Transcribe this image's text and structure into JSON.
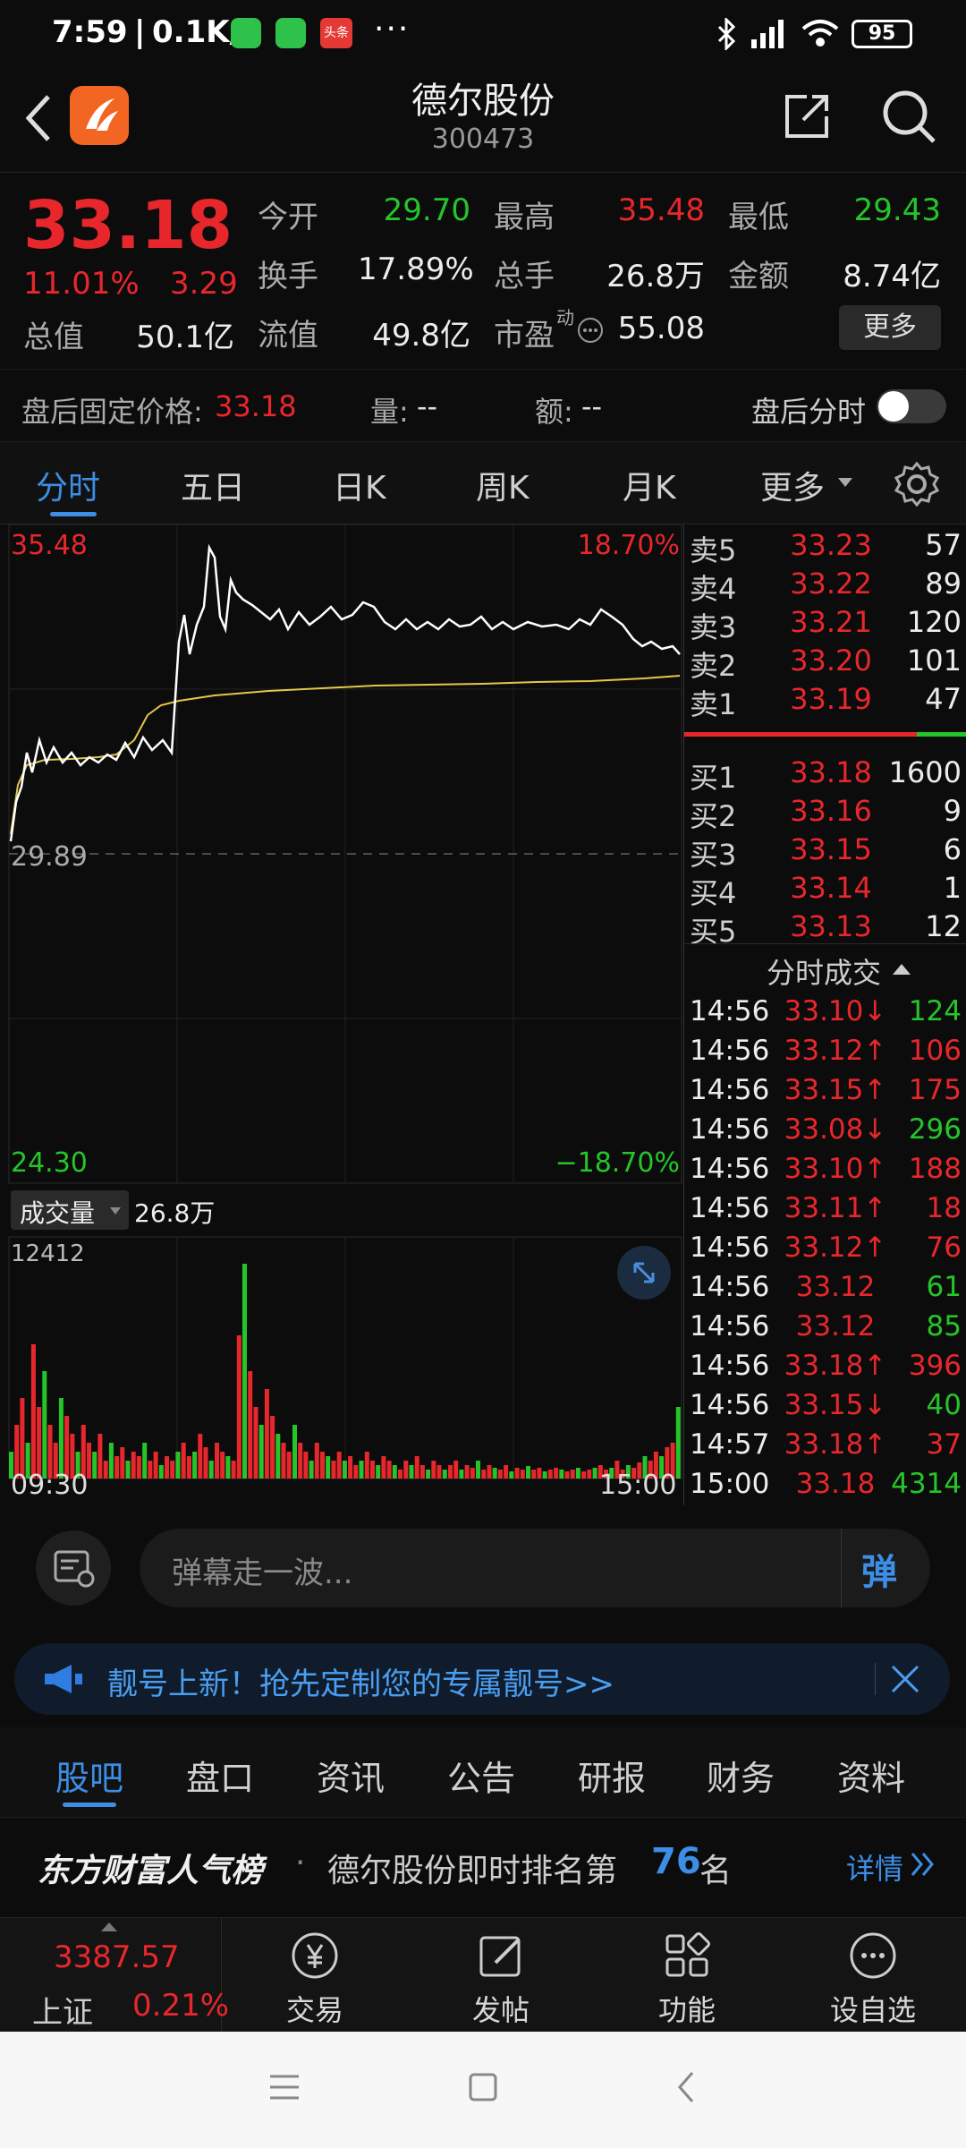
{
  "status": {
    "time": "7:59",
    "speed": "0.1K/s",
    "battery": "95",
    "more": "···",
    "app_badge": "头条"
  },
  "header": {
    "name": "德尔股份",
    "code": "300473"
  },
  "quote": {
    "price": "33.18",
    "pct": "11.01%",
    "chg": "3.29",
    "open_label": "今开",
    "open": "29.70",
    "high_label": "最高",
    "high": "35.48",
    "low_label": "最低",
    "low": "29.43",
    "turnover_label": "换手",
    "turnover": "17.89%",
    "volume_label": "总手",
    "volume": "26.8万",
    "amount_label": "金额",
    "amount": "8.74亿",
    "mcap_label": "总值",
    "mcap": "50.1亿",
    "float_label": "流值",
    "float": "49.8亿",
    "pe_label": "市盈",
    "pe_sup": "动",
    "pe": "55.08",
    "more": "更多"
  },
  "after_hours": {
    "label": "盘后固定价格:",
    "price": "33.18",
    "vol_label": "量:",
    "vol": "--",
    "amt_label": "额:",
    "amt": "--",
    "toggle_label": "盘后分时"
  },
  "period_tabs": [
    "分时",
    "五日",
    "日K",
    "周K",
    "月K",
    "更多"
  ],
  "chart": {
    "max_price": "35.48",
    "max_pct": "18.70%",
    "prev_close": "29.89",
    "min_price": "24.30",
    "min_pct": "−18.70%",
    "vol_selector": "成交量",
    "vol_total": "26.8万",
    "vol_max": "12412",
    "t_start": "09:30",
    "t_end": "15:00"
  },
  "colors": {
    "up": "#e8272c",
    "down": "#25c52a",
    "price_line": "#ffffff",
    "avg_line": "#e2c84a",
    "accent": "#3c8ee6"
  },
  "orderbook": {
    "asks": [
      {
        "label": "卖5",
        "price": "33.23",
        "vol": "57"
      },
      {
        "label": "卖4",
        "price": "33.22",
        "vol": "89"
      },
      {
        "label": "卖3",
        "price": "33.21",
        "vol": "120"
      },
      {
        "label": "卖2",
        "price": "33.20",
        "vol": "101"
      },
      {
        "label": "卖1",
        "price": "33.19",
        "vol": "47"
      }
    ],
    "bids": [
      {
        "label": "买1",
        "price": "33.18",
        "vol": "1600"
      },
      {
        "label": "买2",
        "price": "33.16",
        "vol": "9"
      },
      {
        "label": "买3",
        "price": "33.15",
        "vol": "6"
      },
      {
        "label": "买4",
        "price": "33.14",
        "vol": "1"
      },
      {
        "label": "买5",
        "price": "33.13",
        "vol": "12"
      }
    ],
    "trades_title": "分时成交",
    "trades": [
      {
        "time": "14:56",
        "price": "33.10",
        "arrow": "↓",
        "vol": "124",
        "dir": "down"
      },
      {
        "time": "14:56",
        "price": "33.12",
        "arrow": "↑",
        "vol": "106",
        "dir": "up"
      },
      {
        "time": "14:56",
        "price": "33.15",
        "arrow": "↑",
        "vol": "175",
        "dir": "up"
      },
      {
        "time": "14:56",
        "price": "33.08",
        "arrow": "↓",
        "vol": "296",
        "dir": "down"
      },
      {
        "time": "14:56",
        "price": "33.10",
        "arrow": "↑",
        "vol": "188",
        "dir": "up"
      },
      {
        "time": "14:56",
        "price": "33.11",
        "arrow": "↑",
        "vol": "18",
        "dir": "up"
      },
      {
        "time": "14:56",
        "price": "33.12",
        "arrow": "↑",
        "vol": "76",
        "dir": "up"
      },
      {
        "time": "14:56",
        "price": "33.12",
        "arrow": "",
        "vol": "61",
        "dir": "down"
      },
      {
        "time": "14:56",
        "price": "33.12",
        "arrow": "",
        "vol": "85",
        "dir": "down"
      },
      {
        "time": "14:56",
        "price": "33.18",
        "arrow": "↑",
        "vol": "396",
        "dir": "up"
      },
      {
        "time": "14:56",
        "price": "33.15",
        "arrow": "↓",
        "vol": "40",
        "dir": "down"
      },
      {
        "time": "14:57",
        "price": "33.18",
        "arrow": "↑",
        "vol": "37",
        "dir": "up"
      },
      {
        "time": "15:00",
        "price": "33.18",
        "arrow": "",
        "vol": "4314",
        "dir": "down"
      }
    ]
  },
  "danmu": {
    "placeholder": "弹幕走一波...",
    "btn": "弹"
  },
  "promo": {
    "text": "靓号上新！抢先定制您的专属靓号>>"
  },
  "bottom_tabs": [
    "股吧",
    "盘口",
    "资讯",
    "公告",
    "研报",
    "财务",
    "资料"
  ],
  "rank": {
    "title": "东方财富人气榜",
    "dot": "·",
    "text": "德尔股份即时排名第",
    "num": "76",
    "unit": "名",
    "detail": "详情"
  },
  "bottom_nav": {
    "index_value": "3387.57",
    "index_name": "上证",
    "index_pct": "0.21%",
    "items": [
      "交易",
      "发帖",
      "功能",
      "设自选"
    ]
  }
}
